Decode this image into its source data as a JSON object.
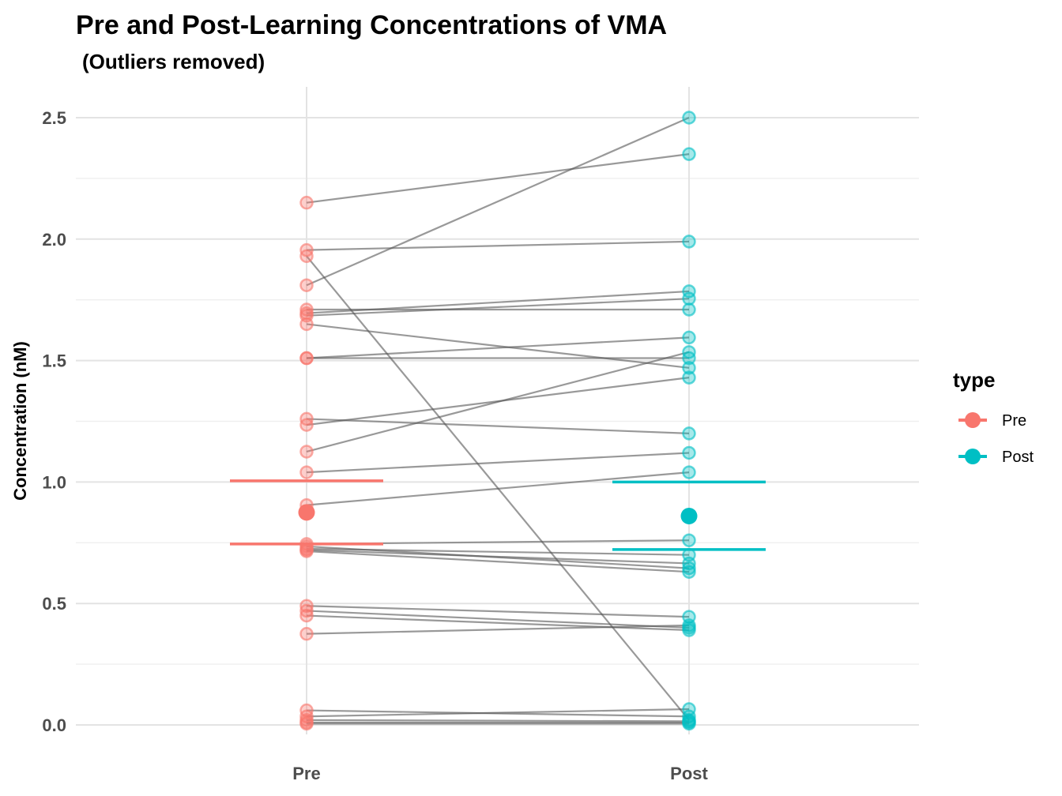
{
  "chart_data": {
    "type": "scatter",
    "title": "Pre and Post-Learning Concentrations of VMA",
    "subtitle": "(Outliers removed)",
    "xlabel": "",
    "ylabel": "Concentration (nM)",
    "categories": [
      "Pre",
      "Post"
    ],
    "ylim": [
      -0.03,
      2.58
    ],
    "y_ticks": [
      "0.0",
      "0.5",
      "1.0",
      "1.5",
      "2.0",
      "2.5"
    ],
    "grid": true,
    "legend": {
      "title": "type",
      "position": "right",
      "entries": [
        "Pre",
        "Post"
      ]
    },
    "colors": {
      "Pre": "#F8766D",
      "Post": "#00BFC4",
      "lines": "#555555"
    },
    "pairs": [
      [
        2.15,
        2.35
      ],
      [
        1.955,
        1.99
      ],
      [
        1.81,
        2.5
      ],
      [
        1.93,
        0.02
      ],
      [
        1.71,
        1.71
      ],
      [
        1.695,
        1.785
      ],
      [
        1.685,
        1.755
      ],
      [
        1.65,
        1.47
      ],
      [
        1.51,
        1.51
      ],
      [
        1.51,
        1.595
      ],
      [
        1.26,
        1.2
      ],
      [
        1.235,
        1.43
      ],
      [
        1.125,
        1.535
      ],
      [
        1.04,
        1.12
      ],
      [
        0.905,
        1.04
      ],
      [
        0.745,
        0.76
      ],
      [
        0.735,
        0.645
      ],
      [
        0.725,
        0.7
      ],
      [
        0.72,
        0.665
      ],
      [
        0.715,
        0.63
      ],
      [
        0.49,
        0.445
      ],
      [
        0.47,
        0.4
      ],
      [
        0.45,
        0.39
      ],
      [
        0.375,
        0.41
      ],
      [
        0.06,
        0.035
      ],
      [
        0.035,
        0.065
      ],
      [
        0.02,
        0.015
      ],
      [
        0.01,
        0.01
      ],
      [
        0.005,
        0.005
      ]
    ],
    "summary": {
      "Pre": {
        "mean": 0.875,
        "upper_line": 1.005,
        "lower_line": 0.745
      },
      "Post": {
        "mean": 0.86,
        "upper_line": 1.0,
        "lower_line": 0.722
      }
    }
  }
}
